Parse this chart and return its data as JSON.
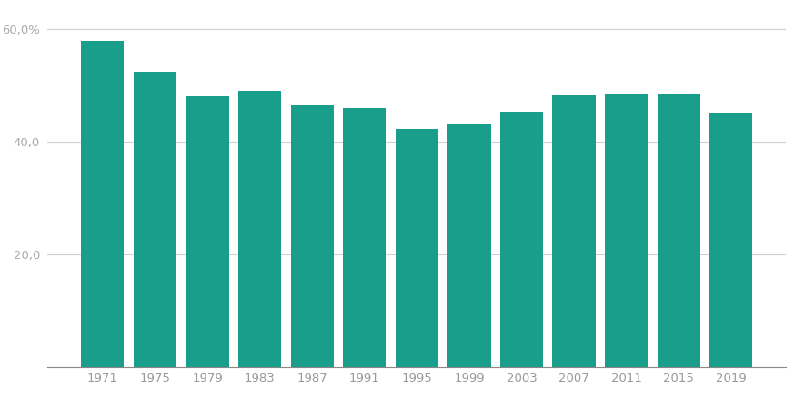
{
  "years": [
    "1971",
    "1975",
    "1979",
    "1983",
    "1987",
    "1991",
    "1995",
    "1999",
    "2003",
    "2007",
    "2011",
    "2015",
    "2019"
  ],
  "values": [
    57.9,
    52.4,
    48.0,
    49.0,
    46.5,
    46.0,
    42.2,
    43.3,
    45.3,
    48.4,
    48.5,
    48.5,
    45.1
  ],
  "bar_color": "#1a9e8c",
  "bg_color": "#ffffff",
  "grid_color": "#d0d0d0",
  "ytick_color": "#aaaaaa",
  "xtick_color": "#999999",
  "yticks": [
    20.0,
    40.0,
    60.0
  ],
  "ylim": [
    0,
    63
  ],
  "bar_width": 0.82
}
